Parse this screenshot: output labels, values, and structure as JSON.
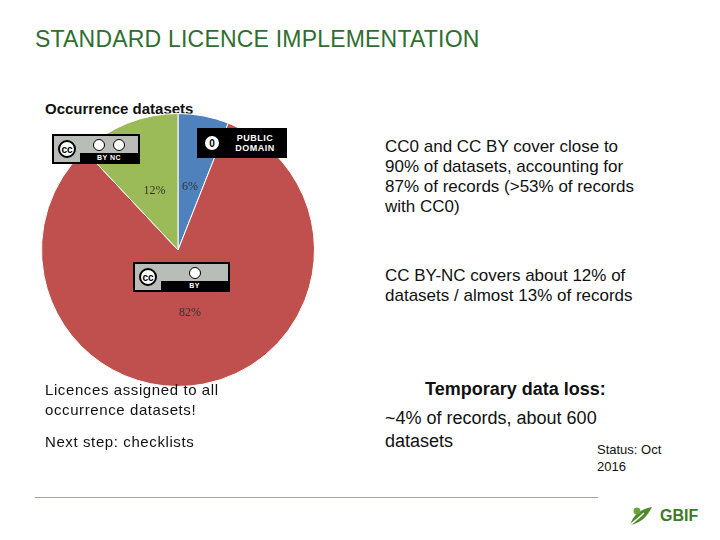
{
  "slide": {
    "title": "STANDARD LICENCE IMPLEMENTATION",
    "subtitle": "Occurrence datasets",
    "badge_symbols": [
      "0",
      "cc",
      "cc"
    ],
    "right_paragraphs": [
      [
        "CC0 and CC BY cover close to",
        "90% of datasets, accounting for",
        "87% of records (>53% of records",
        "with CC0)"
      ],
      [
        "CC BY-NC covers about 12% of",
        "datasets / almost 13% of records"
      ]
    ],
    "left_notes": [
      [
        "Licences assigned to all",
        "occurrence datasets!"
      ],
      [
        "Next step: checklists"
      ]
    ],
    "data_loss_heading": "Temporary data loss:",
    "data_loss_lines": [
      "~4% of records, about 600",
      "datasets"
    ],
    "status_lines": [
      "Status: Oct",
      "2016"
    ],
    "logo": "GBIF"
  },
  "chart_data": {
    "type": "pie",
    "categories": [
      "PUBLIC DOMAIN",
      "BY",
      "BY NC"
    ],
    "values": [
      6,
      82,
      12
    ],
    "value_labels": [
      "6%",
      "82%",
      "12%"
    ],
    "colors": [
      "#4f81bd",
      "#c0504d",
      "#9bbb59"
    ],
    "data_labels": true
  }
}
